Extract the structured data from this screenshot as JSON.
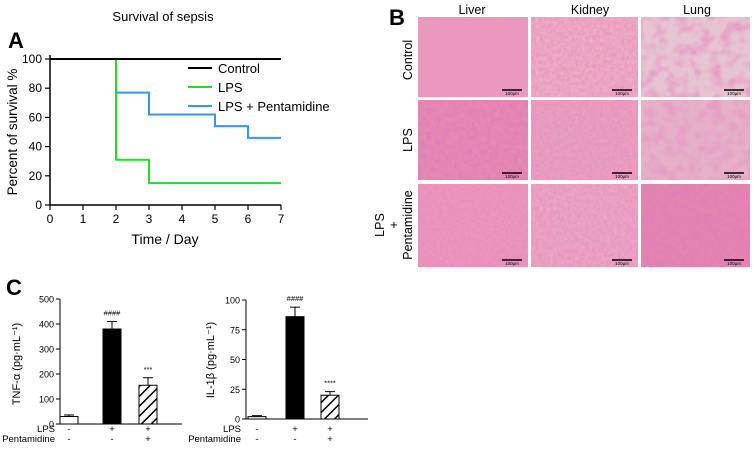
{
  "panels": {
    "a": "A",
    "b": "B",
    "c": "C"
  },
  "colors": {
    "control": "#000000",
    "lps": "#22dd22",
    "lps_pent": "#3399ee"
  },
  "chart_data": [
    {
      "type": "line",
      "title": "Survival of sepsis",
      "xlabel": "Time / Day",
      "ylabel": "Percent of survival %",
      "xlim": [
        0,
        7
      ],
      "ylim": [
        0,
        100
      ],
      "xticks": [
        0,
        1,
        2,
        3,
        4,
        5,
        6,
        7
      ],
      "yticks": [
        0,
        20,
        40,
        60,
        80,
        100
      ],
      "legend_position": "top-right",
      "step": true,
      "series": [
        {
          "name": "Control",
          "color": "#000000",
          "x": [
            0,
            7
          ],
          "y": [
            100,
            100
          ]
        },
        {
          "name": "LPS",
          "color": "#22dd22",
          "x": [
            0,
            2,
            3,
            7
          ],
          "y": [
            100,
            31,
            15,
            15
          ]
        },
        {
          "name": "LPS + Pentamidine",
          "color": "#3399ee",
          "x": [
            0,
            2,
            3,
            5,
            6,
            7
          ],
          "y": [
            100,
            77,
            62,
            54,
            46,
            46
          ]
        }
      ]
    },
    {
      "type": "bar",
      "ylabel": "TNF-α (pg·mL⁻¹)",
      "ylim": [
        0,
        500
      ],
      "yticks": [
        0,
        100,
        200,
        300,
        400,
        500
      ],
      "categories": [
        "Control",
        "LPS",
        "LPS + Pentamidine"
      ],
      "values": [
        30,
        380,
        155
      ],
      "errors": [
        6,
        30,
        30
      ],
      "styles": [
        "white",
        "black",
        "hatched"
      ],
      "annotations": [
        "",
        "####",
        "***"
      ]
    },
    {
      "type": "bar",
      "ylabel": "IL-1β (pg·mL⁻¹)",
      "ylim": [
        0,
        100
      ],
      "yticks": [
        0,
        25,
        50,
        75,
        100
      ],
      "categories": [
        "Control",
        "LPS",
        "LPS + Pentamidine"
      ],
      "values": [
        2,
        86,
        20
      ],
      "errors": [
        0.8,
        8,
        3
      ],
      "styles": [
        "white",
        "black",
        "hatched"
      ],
      "annotations": [
        "",
        "####",
        "****"
      ]
    }
  ],
  "treatment_table": {
    "rows": [
      {
        "label": "LPS",
        "signs": [
          "-",
          "+",
          "+"
        ]
      },
      {
        "label": "Pentamidine",
        "signs": [
          "-",
          "-",
          "+"
        ]
      }
    ]
  },
  "histology": {
    "columns": [
      "Liver",
      "Kidney",
      "Lung"
    ],
    "rows": [
      "Control",
      "LPS",
      "LPS + Pentamidine"
    ],
    "row_label_lines": [
      [
        "Control"
      ],
      [
        "LPS"
      ],
      [
        "LPS",
        "+",
        "Pentamidine"
      ]
    ],
    "scale_bar": "100μm"
  }
}
